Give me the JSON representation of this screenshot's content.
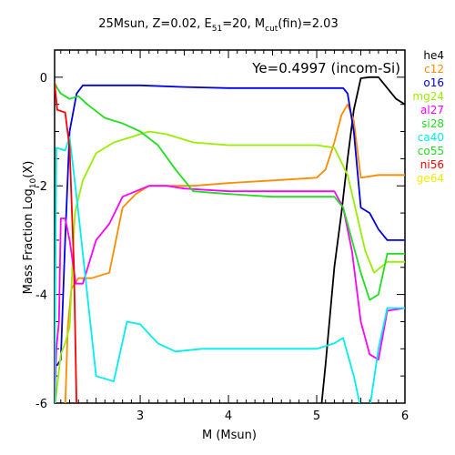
{
  "chart_data": {
    "type": "line",
    "title": {
      "part1": "25Msun, Z=0.02, E",
      "sub1": "51",
      "part2": "=20, M",
      "sub2": "cut",
      "part3": "(fin)=2.03"
    },
    "annotation": "Ye=0.4997 (incom-Si)",
    "xlabel": "M (Msun)",
    "ylabel": {
      "main": "Mass Fraction Log",
      "sub": "10",
      "tail": "(X)"
    },
    "xlim": [
      2.03,
      6.0
    ],
    "ylim": [
      -6,
      0.5
    ],
    "x_ticks": [
      3,
      4,
      5,
      6
    ],
    "y_ticks": [
      0,
      -2,
      -4,
      -6
    ],
    "legend_position": "right-outside",
    "series": [
      {
        "name": "he4",
        "color": "#000000",
        "points": [
          [
            5.05,
            -6.1
          ],
          [
            5.1,
            -5.3
          ],
          [
            5.2,
            -3.5
          ],
          [
            5.28,
            -2.5
          ],
          [
            5.35,
            -1.5
          ],
          [
            5.42,
            -0.6
          ],
          [
            5.5,
            -0.02
          ],
          [
            5.6,
            0.0
          ],
          [
            5.7,
            0.0
          ],
          [
            5.8,
            -0.2
          ],
          [
            5.9,
            -0.4
          ],
          [
            6.0,
            -0.5
          ]
        ]
      },
      {
        "name": "c12",
        "color": "#ff8c00",
        "points": [
          [
            2.15,
            -6.1
          ],
          [
            2.18,
            -4.6
          ],
          [
            2.22,
            -3.9
          ],
          [
            2.3,
            -3.7
          ],
          [
            2.45,
            -3.7
          ],
          [
            2.65,
            -3.6
          ],
          [
            2.8,
            -2.4
          ],
          [
            2.95,
            -2.15
          ],
          [
            3.1,
            -2.0
          ],
          [
            3.3,
            -2.0
          ],
          [
            3.6,
            -2.0
          ],
          [
            4.0,
            -1.95
          ],
          [
            4.5,
            -1.9
          ],
          [
            5.0,
            -1.85
          ],
          [
            5.1,
            -1.7
          ],
          [
            5.2,
            -1.2
          ],
          [
            5.28,
            -0.7
          ],
          [
            5.35,
            -0.5
          ],
          [
            5.42,
            -0.8
          ],
          [
            5.5,
            -1.85
          ],
          [
            5.7,
            -1.8
          ],
          [
            6.0,
            -1.8
          ]
        ]
      },
      {
        "name": "o16",
        "color": "#0000e0",
        "points": [
          [
            2.03,
            -5.3
          ],
          [
            2.06,
            -5.3
          ],
          [
            2.1,
            -5.2
          ],
          [
            2.15,
            -3.0
          ],
          [
            2.2,
            -1.0
          ],
          [
            2.28,
            -0.3
          ],
          [
            2.35,
            -0.15
          ],
          [
            2.6,
            -0.15
          ],
          [
            3.0,
            -0.15
          ],
          [
            3.5,
            -0.18
          ],
          [
            4.0,
            -0.2
          ],
          [
            4.5,
            -0.2
          ],
          [
            5.0,
            -0.2
          ],
          [
            5.3,
            -0.2
          ],
          [
            5.35,
            -0.3
          ],
          [
            5.42,
            -1.0
          ],
          [
            5.5,
            -2.4
          ],
          [
            5.6,
            -2.5
          ],
          [
            5.7,
            -2.8
          ],
          [
            5.8,
            -3.0
          ],
          [
            6.0,
            -3.0
          ]
        ]
      },
      {
        "name": "mg24",
        "color": "#99ee00",
        "points": [
          [
            2.03,
            -6.1
          ],
          [
            2.1,
            -5.1
          ],
          [
            2.15,
            -4.9
          ],
          [
            2.2,
            -4.6
          ],
          [
            2.26,
            -2.5
          ],
          [
            2.35,
            -1.9
          ],
          [
            2.5,
            -1.4
          ],
          [
            2.7,
            -1.2
          ],
          [
            2.9,
            -1.1
          ],
          [
            3.1,
            -1.0
          ],
          [
            3.3,
            -1.05
          ],
          [
            3.6,
            -1.2
          ],
          [
            4.0,
            -1.25
          ],
          [
            4.5,
            -1.25
          ],
          [
            5.0,
            -1.25
          ],
          [
            5.2,
            -1.3
          ],
          [
            5.35,
            -1.8
          ],
          [
            5.45,
            -2.5
          ],
          [
            5.55,
            -3.2
          ],
          [
            5.65,
            -3.6
          ],
          [
            5.8,
            -3.4
          ],
          [
            6.0,
            -3.4
          ]
        ]
      },
      {
        "name": "al27",
        "color": "#ff00ff",
        "points": [
          [
            2.03,
            -6.1
          ],
          [
            2.05,
            -5.0
          ],
          [
            2.08,
            -4.5
          ],
          [
            2.1,
            -2.6
          ],
          [
            2.15,
            -2.6
          ],
          [
            2.2,
            -3.0
          ],
          [
            2.27,
            -3.8
          ],
          [
            2.35,
            -3.8
          ],
          [
            2.5,
            -3.0
          ],
          [
            2.65,
            -2.7
          ],
          [
            2.8,
            -2.2
          ],
          [
            2.95,
            -2.1
          ],
          [
            3.1,
            -2.0
          ],
          [
            3.3,
            -2.0
          ],
          [
            3.5,
            -2.05
          ],
          [
            4.0,
            -2.1
          ],
          [
            4.5,
            -2.1
          ],
          [
            5.0,
            -2.1
          ],
          [
            5.2,
            -2.1
          ],
          [
            5.3,
            -2.4
          ],
          [
            5.4,
            -3.2
          ],
          [
            5.5,
            -4.5
          ],
          [
            5.6,
            -5.1
          ],
          [
            5.7,
            -5.2
          ],
          [
            5.8,
            -4.3
          ],
          [
            6.0,
            -4.25
          ]
        ]
      },
      {
        "name": "si28",
        "color": "#22dd22",
        "points": [
          [
            2.03,
            -0.1
          ],
          [
            2.06,
            -0.2
          ],
          [
            2.1,
            -0.3
          ],
          [
            2.2,
            -0.4
          ],
          [
            2.3,
            -0.35
          ],
          [
            2.4,
            -0.5
          ],
          [
            2.6,
            -0.75
          ],
          [
            2.8,
            -0.85
          ],
          [
            3.0,
            -1.0
          ],
          [
            3.2,
            -1.25
          ],
          [
            3.4,
            -1.7
          ],
          [
            3.6,
            -2.1
          ],
          [
            4.0,
            -2.15
          ],
          [
            4.5,
            -2.2
          ],
          [
            5.0,
            -2.2
          ],
          [
            5.2,
            -2.2
          ],
          [
            5.3,
            -2.4
          ],
          [
            5.4,
            -3.0
          ],
          [
            5.5,
            -3.6
          ],
          [
            5.6,
            -4.1
          ],
          [
            5.7,
            -4.0
          ],
          [
            5.8,
            -3.25
          ],
          [
            6.0,
            -3.25
          ]
        ]
      },
      {
        "name": "ca40",
        "color": "#00eeee",
        "points": [
          [
            2.03,
            -6.1
          ],
          [
            2.05,
            -1.3
          ],
          [
            2.15,
            -1.35
          ],
          [
            2.2,
            -1.1
          ],
          [
            2.3,
            -2.5
          ],
          [
            2.5,
            -5.5
          ],
          [
            2.7,
            -5.6
          ],
          [
            2.85,
            -4.5
          ],
          [
            3.0,
            -4.55
          ],
          [
            3.2,
            -4.9
          ],
          [
            3.4,
            -5.05
          ],
          [
            3.7,
            -5.0
          ],
          [
            4.0,
            -5.0
          ],
          [
            4.5,
            -5.0
          ],
          [
            5.0,
            -5.0
          ],
          [
            5.2,
            -4.9
          ],
          [
            5.3,
            -4.8
          ],
          [
            5.42,
            -5.5
          ],
          [
            5.5,
            -6.1
          ],
          [
            5.6,
            -6.1
          ],
          [
            5.7,
            -5.0
          ],
          [
            5.8,
            -4.25
          ],
          [
            6.0,
            -4.25
          ]
        ]
      },
      {
        "name": "co55",
        "color": "#22dd22",
        "points": []
      },
      {
        "name": "ni56",
        "color": "#ff0000",
        "points": [
          [
            2.03,
            -0.1
          ],
          [
            2.06,
            -0.6
          ],
          [
            2.15,
            -0.65
          ],
          [
            2.2,
            -1.3
          ],
          [
            2.25,
            -3.5
          ],
          [
            2.28,
            -6.1
          ]
        ]
      },
      {
        "name": "ge64",
        "color": "#eeee00",
        "points": []
      }
    ]
  }
}
